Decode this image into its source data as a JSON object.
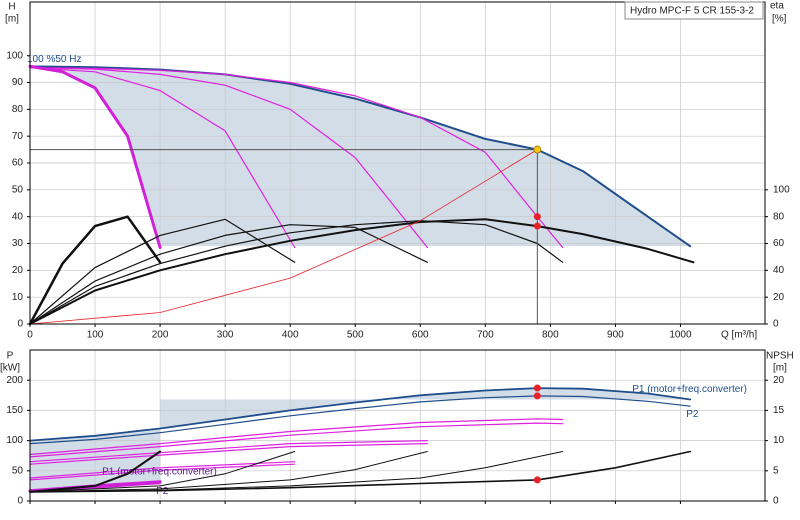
{
  "chart_data": [
    {
      "type": "line",
      "title": "Hydro MPC-F 5 CR 155-3-2",
      "ylabel": "H",
      "yunit": "[m]",
      "y2label": "eta",
      "y2unit": "[%]",
      "xlabel": "Q [m³/h]",
      "xlim": [
        0,
        1130
      ],
      "xticks": [
        0,
        100,
        200,
        300,
        400,
        500,
        600,
        700,
        800,
        900,
        1000
      ],
      "ylim": [
        0,
        120
      ],
      "yticks": [
        0,
        10,
        20,
        30,
        40,
        50,
        60,
        70,
        80,
        90,
        100
      ],
      "y2lim": [
        0,
        240
      ],
      "y2ticks": [
        0,
        20,
        40,
        60,
        80,
        100
      ],
      "grid": true,
      "show_xtick_labels": true,
      "series": [
        {
          "color": "#1f4e8c",
          "width": 2,
          "label": "100 %50 Hz",
          "label_pos": "start",
          "fill": "#d3dde8",
          "x": [
            0,
            100,
            200,
            300,
            400,
            500,
            600,
            700,
            780,
            850,
            950,
            1015
          ],
          "values": [
            96,
            95.7,
            94.8,
            93,
            89.5,
            84,
            77,
            69,
            65,
            57,
            40,
            29
          ]
        },
        {
          "color": "#e020e0",
          "width": 1.2,
          "x": [
            0,
            100,
            200,
            300,
            407
          ],
          "values": [
            95.5,
            94,
            87,
            72,
            28.5
          ]
        },
        {
          "color": "#e020e0",
          "width": 1.2,
          "x": [
            0,
            100,
            200,
            300,
            400,
            500,
            611
          ],
          "values": [
            95.5,
            95,
            93,
            89,
            80,
            62,
            28.5
          ]
        },
        {
          "color": "#e020e0",
          "width": 1.2,
          "x": [
            0,
            100,
            200,
            300,
            400,
            500,
            600,
            700,
            780,
            819
          ],
          "values": [
            95.5,
            95.3,
            94.5,
            93,
            90,
            85,
            77,
            64,
            40,
            28.5
          ]
        },
        {
          "color": "#d020d8",
          "width": 3,
          "fill_floor": true,
          "x": [
            0,
            50,
            100,
            150,
            200
          ],
          "values": [
            96,
            94,
            88,
            70,
            28.5
          ]
        },
        {
          "color": "#111111",
          "width": 2,
          "axis": "y2",
          "x": [
            0,
            100,
            200,
            300,
            400,
            500,
            600,
            700,
            780,
            850,
            950,
            1020
          ],
          "values": [
            0,
            25,
            40,
            52,
            62,
            70,
            76,
            78,
            73,
            67,
            56,
            46
          ]
        },
        {
          "color": "#111111",
          "width": 1.2,
          "axis": "y2",
          "x": [
            0,
            100,
            200,
            300,
            400,
            500,
            600,
            700,
            780,
            819
          ],
          "values": [
            0,
            28,
            45,
            58,
            68,
            74,
            77,
            74,
            60,
            46
          ]
        },
        {
          "color": "#111111",
          "width": 1.2,
          "axis": "y2",
          "x": [
            0,
            100,
            200,
            300,
            400,
            500,
            611
          ],
          "values": [
            0,
            32,
            52,
            66,
            74,
            72,
            46
          ]
        },
        {
          "color": "#111111",
          "width": 1.2,
          "axis": "y2",
          "x": [
            0,
            100,
            200,
            300,
            407
          ],
          "values": [
            0,
            42,
            66,
            78,
            46
          ]
        },
        {
          "color": "#111111",
          "width": 2.5,
          "axis": "y2",
          "x": [
            0,
            50,
            100,
            150,
            200
          ],
          "values": [
            0,
            45,
            73,
            80,
            46
          ]
        },
        {
          "color": "#e8202a",
          "width": 0.8,
          "x": [
            0,
            200,
            400,
            600,
            780
          ],
          "values": [
            0,
            4.3,
            17.1,
            38.5,
            65
          ]
        }
      ],
      "markers": [
        {
          "x": 780,
          "y": 65,
          "color": "#f5c518",
          "crosshair": true
        },
        {
          "x": 780,
          "y": 40,
          "color": "#e8202a"
        },
        {
          "x": 780,
          "y": 73,
          "axis": "y2",
          "color": "#e8202a"
        }
      ]
    },
    {
      "type": "line",
      "ylabel": "P",
      "yunit": "[kW]",
      "y2label": "NPSH",
      "y2unit": "[m]",
      "xlim": [
        0,
        1130
      ],
      "xticks": [
        0,
        100,
        200,
        300,
        400,
        500,
        600,
        700,
        800,
        900,
        1000
      ],
      "ylim": [
        0,
        250
      ],
      "yticks": [
        0,
        50,
        100,
        150,
        200
      ],
      "y2lim": [
        0,
        25
      ],
      "y2ticks": [
        0,
        5,
        10,
        15,
        20
      ],
      "grid": true,
      "show_xtick_labels": false,
      "series": [
        {
          "color": "#1f4e8c",
          "width": 1.8,
          "label": "P1 (motor+freq.converter)",
          "label_pos": "above",
          "fill": "#d3dde8",
          "x": [
            0,
            100,
            200,
            300,
            400,
            500,
            600,
            700,
            780,
            850,
            950,
            1015
          ],
          "values": [
            100,
            108,
            120,
            135,
            150,
            163,
            175,
            183,
            187,
            186,
            178,
            168
          ]
        },
        {
          "color": "#1f4e8c",
          "width": 1.2,
          "label": "P2",
          "label_pos": "below",
          "x": [
            0,
            100,
            200,
            300,
            400,
            500,
            600,
            700,
            780,
            850,
            950,
            1015
          ],
          "values": [
            95,
            102,
            113,
            127,
            141,
            153,
            164,
            171,
            174,
            173,
            165,
            157
          ]
        },
        {
          "color": "#e020e0",
          "width": 1.2,
          "x": [
            0,
            200,
            400,
            600,
            780,
            819
          ],
          "values": [
            77,
            95,
            115,
            130,
            136,
            135
          ]
        },
        {
          "color": "#e020e0",
          "width": 1.2,
          "x": [
            0,
            200,
            400,
            600,
            780,
            819
          ],
          "values": [
            73,
            90,
            109,
            123,
            129,
            128
          ]
        },
        {
          "color": "#e020e0",
          "width": 1.2,
          "x": [
            0,
            200,
            400,
            611
          ],
          "values": [
            65,
            80,
            95,
            100
          ]
        },
        {
          "color": "#e020e0",
          "width": 1.2,
          "x": [
            0,
            200,
            400,
            611
          ],
          "values": [
            61,
            76,
            90,
            95
          ]
        },
        {
          "color": "#e020e0",
          "width": 1.2,
          "x": [
            0,
            200,
            407
          ],
          "values": [
            38,
            55,
            65
          ]
        },
        {
          "color": "#e020e0",
          "width": 1.2,
          "x": [
            0,
            200,
            407
          ],
          "values": [
            35,
            51,
            61
          ]
        },
        {
          "color": "#d020d8",
          "width": 3,
          "fill_floor": true,
          "label": "P1 (motor+freq.converter)",
          "label_pos": "above",
          "x": [
            0,
            100,
            200
          ],
          "values": [
            17,
            25,
            32
          ]
        },
        {
          "color": "#d020d8",
          "width": 1.5,
          "label": "P2",
          "label_pos": "below",
          "x": [
            0,
            100,
            200
          ],
          "values": [
            15,
            22,
            29
          ]
        },
        {
          "color": "#111111",
          "width": 1.6,
          "axis": "y2",
          "x": [
            0,
            200,
            400,
            600,
            780,
            900,
            1015
          ],
          "values": [
            1.5,
            1.7,
            2.2,
            2.9,
            3.5,
            5.5,
            8.2
          ]
        },
        {
          "color": "#111111",
          "width": 1,
          "axis": "y2",
          "x": [
            0,
            200,
            400,
            600,
            700,
            819
          ],
          "values": [
            1.5,
            1.8,
            2.5,
            3.8,
            5.5,
            8.2
          ]
        },
        {
          "color": "#111111",
          "width": 1,
          "axis": "y2",
          "x": [
            0,
            200,
            400,
            500,
            611
          ],
          "values": [
            1.5,
            2,
            3.5,
            5.2,
            8.2
          ]
        },
        {
          "color": "#111111",
          "width": 1,
          "axis": "y2",
          "x": [
            0,
            200,
            300,
            407
          ],
          "values": [
            1.5,
            2.5,
            4.5,
            8.2
          ]
        },
        {
          "color": "#111111",
          "width": 2,
          "axis": "y2",
          "x": [
            0,
            100,
            150,
            200
          ],
          "values": [
            1.5,
            2.5,
            4.5,
            8.2
          ]
        }
      ],
      "markers": [
        {
          "x": 780,
          "y": 187,
          "color": "#e8202a"
        },
        {
          "x": 780,
          "y": 174,
          "color": "#e8202a"
        },
        {
          "x": 780,
          "y": 3.5,
          "axis": "y2",
          "color": "#e8202a"
        }
      ]
    }
  ]
}
